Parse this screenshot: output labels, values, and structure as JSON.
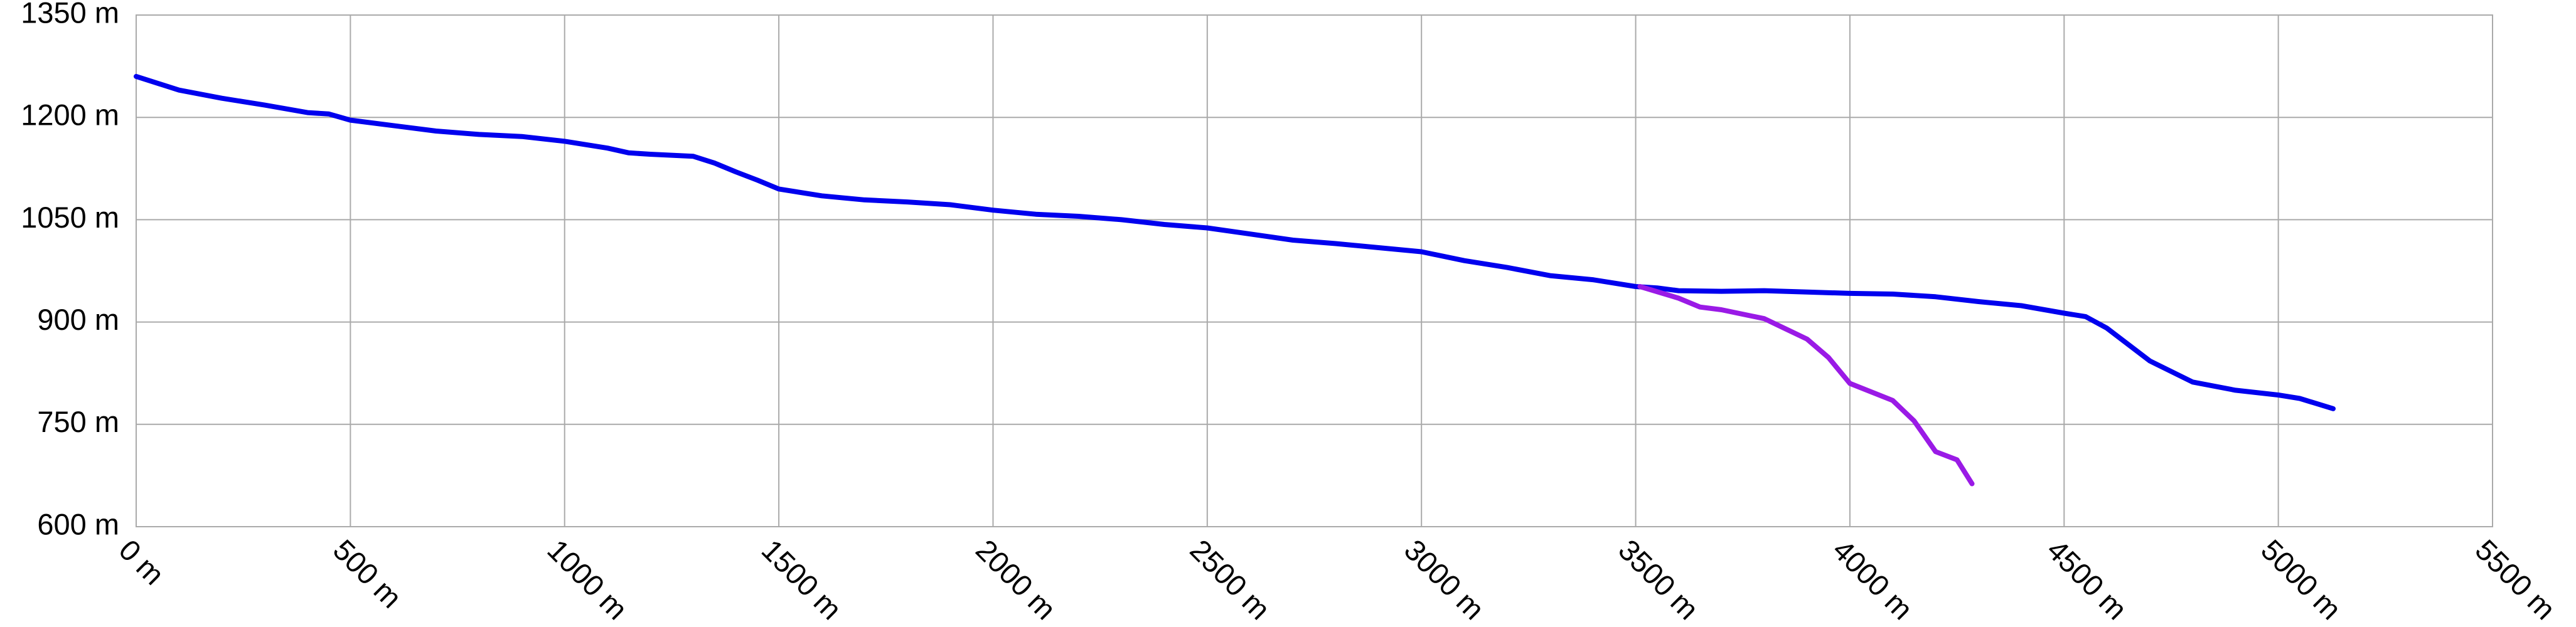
{
  "chart_data": {
    "type": "line",
    "xlim": [
      0,
      5500
    ],
    "xticks": [
      {
        "value": 0,
        "label": "0 m"
      },
      {
        "value": 500,
        "label": "500 m"
      },
      {
        "value": 1000,
        "label": "1000 m"
      },
      {
        "value": 1500,
        "label": "1500 m"
      },
      {
        "value": 2000,
        "label": "2000 m"
      },
      {
        "value": 2500,
        "label": "2500 m"
      },
      {
        "value": 3000,
        "label": "3000 m"
      },
      {
        "value": 3500,
        "label": "3500 m"
      },
      {
        "value": 4000,
        "label": "4000 m"
      },
      {
        "value": 4500,
        "label": "4500 m"
      },
      {
        "value": 5000,
        "label": "5000 m"
      },
      {
        "value": 5500,
        "label": "5500 m"
      }
    ],
    "ylim": [
      600,
      1350
    ],
    "yticks": [
      {
        "value": 600,
        "label": "600 m"
      },
      {
        "value": 750,
        "label": "750 m"
      },
      {
        "value": 900,
        "label": "900 m"
      },
      {
        "value": 1050,
        "label": "1050 m"
      },
      {
        "value": 1200,
        "label": "1200 m"
      },
      {
        "value": 1350,
        "label": "1350 m"
      }
    ],
    "grid": true,
    "series": [
      {
        "color": "#0000ee",
        "x": [
          0,
          100,
          200,
          300,
          400,
          450,
          500,
          600,
          700,
          800,
          900,
          1000,
          1100,
          1150,
          1200,
          1300,
          1350,
          1400,
          1450,
          1500,
          1600,
          1700,
          1800,
          1900,
          2000,
          2100,
          2200,
          2300,
          2400,
          2500,
          2600,
          2700,
          2800,
          2900,
          3000,
          3100,
          3200,
          3300,
          3400,
          3500,
          3550,
          3600,
          3700,
          3800,
          3900,
          4000,
          4100,
          4200,
          4300,
          4400,
          4500,
          4550,
          4600,
          4700,
          4800,
          4900,
          5000,
          5050,
          5128
        ],
        "values": [
          1260,
          1240,
          1228,
          1218,
          1207,
          1205,
          1196,
          1188,
          1180,
          1175,
          1172,
          1165,
          1155,
          1148,
          1146,
          1143,
          1133,
          1120,
          1108,
          1095,
          1085,
          1079,
          1076,
          1072,
          1064,
          1058,
          1055,
          1050,
          1043,
          1038,
          1029,
          1020,
          1015,
          1009,
          1003,
          990,
          980,
          968,
          962,
          952,
          950,
          946,
          945,
          946,
          944,
          942,
          941,
          937,
          930,
          924,
          913,
          908,
          891,
          843,
          812,
          800,
          793,
          788,
          773
        ]
      },
      {
        "color": "#9a1ae6",
        "x": [
          3510,
          3600,
          3650,
          3700,
          3800,
          3850,
          3900,
          3950,
          4000,
          4100,
          4150,
          4200,
          4250,
          4285
        ],
        "values": [
          952,
          935,
          922,
          918,
          905,
          890,
          875,
          848,
          810,
          785,
          755,
          710,
          698,
          663
        ]
      }
    ]
  }
}
